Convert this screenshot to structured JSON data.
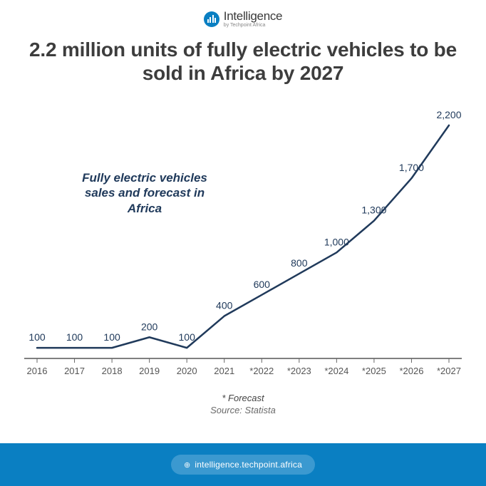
{
  "logo": {
    "title": "Intelligence",
    "subtitle": "by Techpoint Africa"
  },
  "headline": "2.2 million units of fully electric vehicles to be sold in Africa by 2027",
  "chart": {
    "type": "line",
    "label": "Fully electric vehicles sales and forecast in Africa",
    "categories": [
      "2016",
      "2017",
      "2018",
      "2019",
      "2020",
      "2021",
      "*2022",
      "*2023",
      "*2024",
      "*2025",
      "*2026",
      "*2027"
    ],
    "values": [
      100,
      100,
      100,
      200,
      100,
      400,
      600,
      800,
      1000,
      1300,
      1700,
      2200
    ],
    "value_labels": [
      "100",
      "100",
      "100",
      "200",
      "100",
      "400",
      "600",
      "800",
      "1,000",
      "1,300",
      "1,700",
      "2,200"
    ],
    "ylim": [
      0,
      2300
    ],
    "line_color": "#203a5b",
    "line_width": 2.5,
    "label_color": "#203a5b",
    "value_fontsize": 14,
    "axis_fontsize": 13,
    "axis_color": "#555555",
    "baseline_color": "#333333",
    "tick_color": "#666666",
    "background_color": "#ffffff"
  },
  "notes": {
    "forecast": "* Forecast",
    "source": "Source: Statista"
  },
  "footer": {
    "url": "intelligence.techpoint.africa"
  },
  "colors": {
    "brand": "#0a7fc2",
    "pill": "#3b99d0",
    "headline": "#3d3d3d"
  }
}
